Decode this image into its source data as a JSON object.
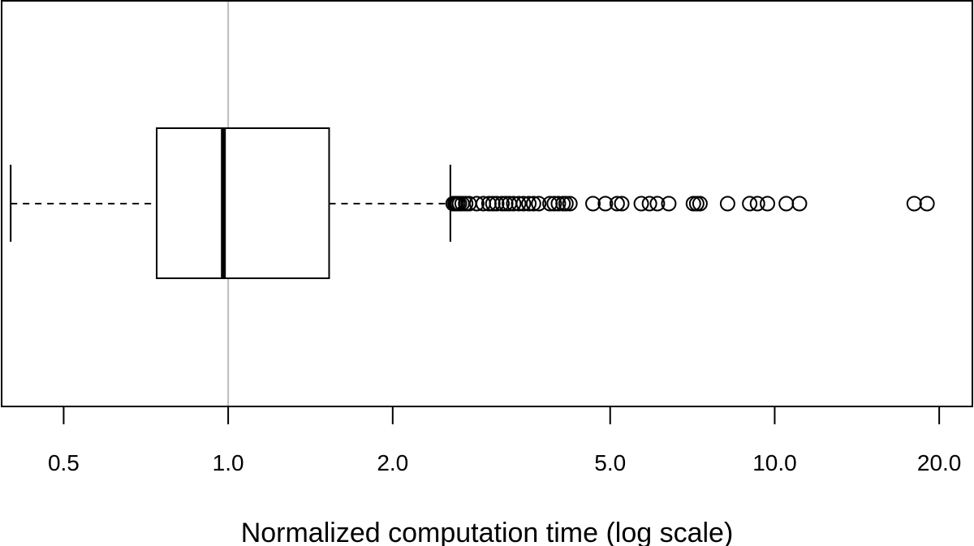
{
  "chart_data": {
    "type": "boxplot",
    "orientation": "horizontal",
    "xlabel": "Normalized computation time (log scale)",
    "ylabel": "",
    "title": "",
    "x_scale": "log",
    "xlim": [
      0.385,
      23
    ],
    "xticks": [
      0.5,
      1.0,
      2.0,
      5.0,
      10.0,
      20.0
    ],
    "xtick_labels": [
      "0.5",
      "1.0",
      "2.0",
      "5.0",
      "10.0",
      "20.0"
    ],
    "reference_line": {
      "x": 1.0,
      "color": "#bdbdbd"
    },
    "box": {
      "whisker_low": 0.4,
      "q1": 0.74,
      "median": 0.98,
      "q3": 1.53,
      "whisker_high": 2.55
    },
    "outliers": [
      2.58,
      2.6,
      2.61,
      2.63,
      2.65,
      2.68,
      2.72,
      2.76,
      2.85,
      2.93,
      3.0,
      3.05,
      3.1,
      3.17,
      3.22,
      3.27,
      3.33,
      3.4,
      3.47,
      3.55,
      3.62,
      3.7,
      3.88,
      3.95,
      4.02,
      4.1,
      4.15,
      4.22,
      4.65,
      4.9,
      5.15,
      5.25,
      5.7,
      5.9,
      6.1,
      6.4,
      7.1,
      7.2,
      7.3,
      8.2,
      9.0,
      9.3,
      9.7,
      10.5,
      11.1,
      18.0,
      19.0
    ],
    "grid": false,
    "legend": "none"
  }
}
